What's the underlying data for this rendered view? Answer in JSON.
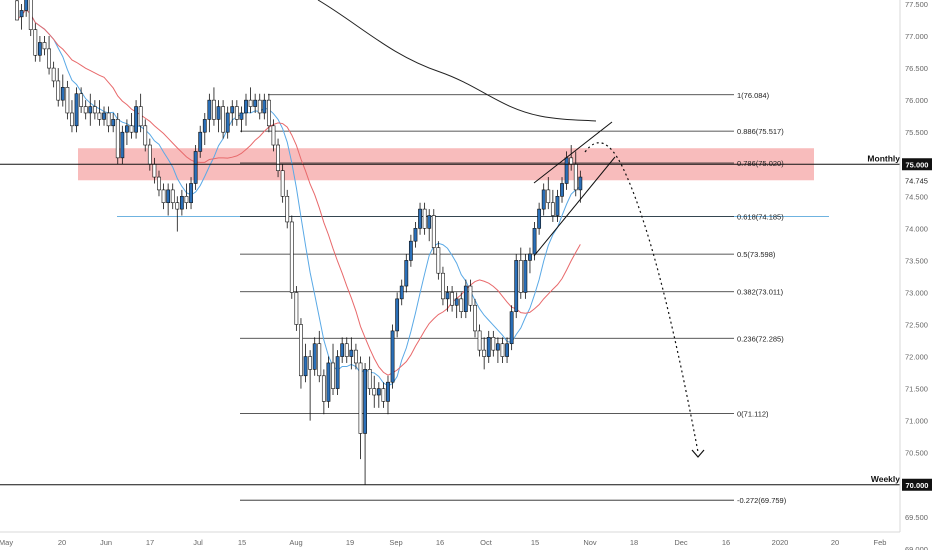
{
  "chart_data": {
    "type": "candlestick",
    "title": "",
    "xlabel": "",
    "ylabel": "",
    "ylim": [
      68.75,
      77.75
    ],
    "y_ticks": [
      "77.500",
      "77.000",
      "76.500",
      "76.000",
      "75.500",
      "75.000",
      "74.745",
      "74.500",
      "74.000",
      "73.500",
      "73.000",
      "72.500",
      "72.000",
      "71.500",
      "71.000",
      "70.500",
      "70.000",
      "69.500",
      "69.000"
    ],
    "x_ticks": [
      "May",
      "20",
      "Jun",
      "17",
      "Jul",
      "15",
      "Aug",
      "19",
      "Sep",
      "16",
      "Oct",
      "15",
      "Nov",
      "18",
      "Dec",
      "16",
      "2020",
      "20",
      "Feb"
    ],
    "current_price": "74.745",
    "candles": [
      {
        "o": 77.55,
        "h": 77.8,
        "l": 77.3,
        "c": 77.25
      },
      {
        "o": 77.3,
        "h": 77.5,
        "l": 77.1,
        "c": 77.4
      },
      {
        "o": 77.4,
        "h": 77.7,
        "l": 77.3,
        "c": 77.6
      },
      {
        "o": 77.6,
        "h": 77.7,
        "l": 77.0,
        "c": 77.1
      },
      {
        "o": 77.1,
        "h": 77.2,
        "l": 76.6,
        "c": 76.7
      },
      {
        "o": 76.7,
        "h": 77.0,
        "l": 76.6,
        "c": 76.9
      },
      {
        "o": 76.9,
        "h": 77.0,
        "l": 76.7,
        "c": 76.8
      },
      {
        "o": 76.8,
        "h": 77.0,
        "l": 76.4,
        "c": 76.5
      },
      {
        "o": 76.5,
        "h": 76.6,
        "l": 76.2,
        "c": 76.3
      },
      {
        "o": 76.3,
        "h": 76.5,
        "l": 75.9,
        "c": 76.0
      },
      {
        "o": 76.0,
        "h": 76.4,
        "l": 75.9,
        "c": 76.2
      },
      {
        "o": 76.2,
        "h": 76.3,
        "l": 75.7,
        "c": 75.8
      },
      {
        "o": 75.8,
        "h": 76.0,
        "l": 75.5,
        "c": 75.6
      },
      {
        "o": 75.6,
        "h": 76.2,
        "l": 75.5,
        "c": 76.1
      },
      {
        "o": 76.1,
        "h": 76.2,
        "l": 75.8,
        "c": 75.9
      },
      {
        "o": 75.9,
        "h": 76.0,
        "l": 75.7,
        "c": 75.8
      },
      {
        "o": 75.8,
        "h": 76.1,
        "l": 75.6,
        "c": 75.9
      },
      {
        "o": 75.9,
        "h": 76.0,
        "l": 75.7,
        "c": 75.8
      },
      {
        "o": 75.8,
        "h": 76.0,
        "l": 75.6,
        "c": 75.7
      },
      {
        "o": 75.7,
        "h": 75.9,
        "l": 75.6,
        "c": 75.8
      },
      {
        "o": 75.8,
        "h": 75.9,
        "l": 75.5,
        "c": 75.6
      },
      {
        "o": 75.6,
        "h": 75.8,
        "l": 75.5,
        "c": 75.7
      },
      {
        "o": 75.7,
        "h": 75.8,
        "l": 75.0,
        "c": 75.1
      },
      {
        "o": 75.1,
        "h": 75.6,
        "l": 75.0,
        "c": 75.5
      },
      {
        "o": 75.5,
        "h": 75.7,
        "l": 75.3,
        "c": 75.6
      },
      {
        "o": 75.6,
        "h": 75.8,
        "l": 75.4,
        "c": 75.5
      },
      {
        "o": 75.5,
        "h": 76.0,
        "l": 75.4,
        "c": 75.9
      },
      {
        "o": 75.9,
        "h": 76.1,
        "l": 75.5,
        "c": 75.6
      },
      {
        "o": 75.6,
        "h": 75.7,
        "l": 75.2,
        "c": 75.3
      },
      {
        "o": 75.3,
        "h": 75.4,
        "l": 74.9,
        "c": 75.0
      },
      {
        "o": 75.0,
        "h": 75.1,
        "l": 74.7,
        "c": 74.8
      },
      {
        "o": 74.8,
        "h": 74.9,
        "l": 74.5,
        "c": 74.6
      },
      {
        "o": 74.6,
        "h": 74.7,
        "l": 74.3,
        "c": 74.4
      },
      {
        "o": 74.4,
        "h": 74.7,
        "l": 74.2,
        "c": 74.6
      },
      {
        "o": 74.6,
        "h": 74.7,
        "l": 74.3,
        "c": 74.4
      },
      {
        "o": 74.4,
        "h": 74.5,
        "l": 73.95,
        "c": 74.3
      },
      {
        "o": 74.3,
        "h": 74.6,
        "l": 74.2,
        "c": 74.5
      },
      {
        "o": 74.5,
        "h": 74.7,
        "l": 74.3,
        "c": 74.4
      },
      {
        "o": 74.4,
        "h": 74.8,
        "l": 74.3,
        "c": 74.7
      },
      {
        "o": 74.7,
        "h": 75.3,
        "l": 74.6,
        "c": 75.2
      },
      {
        "o": 75.2,
        "h": 75.6,
        "l": 75.1,
        "c": 75.5
      },
      {
        "o": 75.5,
        "h": 75.8,
        "l": 75.3,
        "c": 75.7
      },
      {
        "o": 75.7,
        "h": 76.1,
        "l": 75.5,
        "c": 76.0
      },
      {
        "o": 76.0,
        "h": 76.2,
        "l": 75.6,
        "c": 75.7
      },
      {
        "o": 75.7,
        "h": 76.0,
        "l": 75.5,
        "c": 75.9
      },
      {
        "o": 75.9,
        "h": 76.0,
        "l": 75.4,
        "c": 75.5
      },
      {
        "o": 75.5,
        "h": 75.9,
        "l": 75.4,
        "c": 75.8
      },
      {
        "o": 75.8,
        "h": 76.0,
        "l": 75.6,
        "c": 75.9
      },
      {
        "o": 75.9,
        "h": 76.0,
        "l": 75.6,
        "c": 75.7
      },
      {
        "o": 75.7,
        "h": 75.9,
        "l": 75.5,
        "c": 75.8
      },
      {
        "o": 75.8,
        "h": 76.1,
        "l": 75.6,
        "c": 76.0
      },
      {
        "o": 76.0,
        "h": 76.2,
        "l": 75.8,
        "c": 75.9
      },
      {
        "o": 75.9,
        "h": 76.1,
        "l": 75.8,
        "c": 76.0
      },
      {
        "o": 76.0,
        "h": 76.1,
        "l": 75.7,
        "c": 75.8
      },
      {
        "o": 75.8,
        "h": 76.1,
        "l": 75.7,
        "c": 76.0
      },
      {
        "o": 76.0,
        "h": 76.1,
        "l": 75.5,
        "c": 75.6
      },
      {
        "o": 75.6,
        "h": 75.7,
        "l": 75.2,
        "c": 75.3
      },
      {
        "o": 75.3,
        "h": 75.4,
        "l": 74.8,
        "c": 74.9
      },
      {
        "o": 74.9,
        "h": 75.0,
        "l": 74.4,
        "c": 74.5
      },
      {
        "o": 74.5,
        "h": 74.6,
        "l": 74.0,
        "c": 74.1
      },
      {
        "o": 74.1,
        "h": 74.2,
        "l": 72.9,
        "c": 73.0
      },
      {
        "o": 73.0,
        "h": 73.1,
        "l": 72.4,
        "c": 72.5
      },
      {
        "o": 72.5,
        "h": 72.6,
        "l": 71.5,
        "c": 71.7
      },
      {
        "o": 71.7,
        "h": 72.2,
        "l": 71.6,
        "c": 72.0
      },
      {
        "o": 72.0,
        "h": 72.1,
        "l": 71.0,
        "c": 71.8
      },
      {
        "o": 71.8,
        "h": 72.3,
        "l": 71.7,
        "c": 72.2
      },
      {
        "o": 72.2,
        "h": 72.4,
        "l": 71.6,
        "c": 71.7
      },
      {
        "o": 71.7,
        "h": 71.8,
        "l": 71.1,
        "c": 71.3
      },
      {
        "o": 71.3,
        "h": 72.0,
        "l": 71.2,
        "c": 71.9
      },
      {
        "o": 71.9,
        "h": 72.2,
        "l": 71.4,
        "c": 71.5
      },
      {
        "o": 71.5,
        "h": 72.1,
        "l": 71.4,
        "c": 72.0
      },
      {
        "o": 72.0,
        "h": 72.3,
        "l": 71.9,
        "c": 72.2
      },
      {
        "o": 72.2,
        "h": 72.3,
        "l": 71.9,
        "c": 72.0
      },
      {
        "o": 72.0,
        "h": 72.3,
        "l": 71.8,
        "c": 72.1
      },
      {
        "o": 72.1,
        "h": 72.2,
        "l": 71.8,
        "c": 71.9
      },
      {
        "o": 71.9,
        "h": 72.0,
        "l": 70.4,
        "c": 70.8
      },
      {
        "o": 70.8,
        "h": 71.9,
        "l": 70.0,
        "c": 71.8
      },
      {
        "o": 71.8,
        "h": 72.0,
        "l": 71.4,
        "c": 71.5
      },
      {
        "o": 71.5,
        "h": 71.7,
        "l": 71.2,
        "c": 71.4
      },
      {
        "o": 71.4,
        "h": 71.6,
        "l": 71.2,
        "c": 71.5
      },
      {
        "o": 71.5,
        "h": 71.6,
        "l": 71.2,
        "c": 71.3
      },
      {
        "o": 71.3,
        "h": 71.7,
        "l": 71.1,
        "c": 71.6
      },
      {
        "o": 71.6,
        "h": 72.5,
        "l": 71.5,
        "c": 72.4
      },
      {
        "o": 72.4,
        "h": 73.0,
        "l": 72.3,
        "c": 72.9
      },
      {
        "o": 72.9,
        "h": 73.2,
        "l": 72.8,
        "c": 73.1
      },
      {
        "o": 73.1,
        "h": 73.6,
        "l": 73.0,
        "c": 73.5
      },
      {
        "o": 73.5,
        "h": 73.9,
        "l": 73.4,
        "c": 73.8
      },
      {
        "o": 73.8,
        "h": 74.1,
        "l": 73.7,
        "c": 74.0
      },
      {
        "o": 74.0,
        "h": 74.4,
        "l": 73.9,
        "c": 74.3
      },
      {
        "o": 74.3,
        "h": 74.4,
        "l": 73.9,
        "c": 74.0
      },
      {
        "o": 74.0,
        "h": 74.3,
        "l": 73.8,
        "c": 74.2
      },
      {
        "o": 74.2,
        "h": 74.3,
        "l": 73.6,
        "c": 73.7
      },
      {
        "o": 73.7,
        "h": 73.8,
        "l": 73.2,
        "c": 73.3
      },
      {
        "o": 73.3,
        "h": 73.4,
        "l": 72.8,
        "c": 72.9
      },
      {
        "o": 72.9,
        "h": 73.1,
        "l": 72.7,
        "c": 73.0
      },
      {
        "o": 73.0,
        "h": 73.1,
        "l": 72.7,
        "c": 72.8
      },
      {
        "o": 72.8,
        "h": 73.0,
        "l": 72.6,
        "c": 72.9
      },
      {
        "o": 72.9,
        "h": 73.0,
        "l": 72.6,
        "c": 72.7
      },
      {
        "o": 72.7,
        "h": 73.2,
        "l": 72.6,
        "c": 73.1
      },
      {
        "o": 73.1,
        "h": 73.2,
        "l": 72.7,
        "c": 72.8
      },
      {
        "o": 72.8,
        "h": 72.9,
        "l": 72.3,
        "c": 72.4
      },
      {
        "o": 72.4,
        "h": 72.5,
        "l": 72.0,
        "c": 72.1
      },
      {
        "o": 72.1,
        "h": 72.3,
        "l": 71.8,
        "c": 72.0
      },
      {
        "o": 72.0,
        "h": 72.4,
        "l": 71.9,
        "c": 72.3
      },
      {
        "o": 72.3,
        "h": 72.4,
        "l": 72.0,
        "c": 72.1
      },
      {
        "o": 72.1,
        "h": 72.3,
        "l": 71.9,
        "c": 72.2
      },
      {
        "o": 72.2,
        "h": 72.3,
        "l": 71.9,
        "c": 72.0
      },
      {
        "o": 72.0,
        "h": 72.3,
        "l": 71.9,
        "c": 72.2
      },
      {
        "o": 72.2,
        "h": 72.8,
        "l": 72.1,
        "c": 72.7
      },
      {
        "o": 72.7,
        "h": 73.6,
        "l": 72.6,
        "c": 73.5
      },
      {
        "o": 73.5,
        "h": 73.7,
        "l": 72.9,
        "c": 73.0
      },
      {
        "o": 73.0,
        "h": 73.6,
        "l": 72.9,
        "c": 73.5
      },
      {
        "o": 73.5,
        "h": 73.7,
        "l": 73.3,
        "c": 73.6
      },
      {
        "o": 73.6,
        "h": 74.1,
        "l": 73.5,
        "c": 74.0
      },
      {
        "o": 74.0,
        "h": 74.4,
        "l": 73.9,
        "c": 74.3
      },
      {
        "o": 74.3,
        "h": 74.7,
        "l": 74.2,
        "c": 74.6
      },
      {
        "o": 74.6,
        "h": 74.8,
        "l": 74.3,
        "c": 74.4
      },
      {
        "o": 74.4,
        "h": 74.6,
        "l": 74.1,
        "c": 74.2
      },
      {
        "o": 74.2,
        "h": 74.6,
        "l": 74.1,
        "c": 74.5
      },
      {
        "o": 74.5,
        "h": 74.8,
        "l": 74.4,
        "c": 74.7
      },
      {
        "o": 74.7,
        "h": 75.2,
        "l": 74.6,
        "c": 75.1
      },
      {
        "o": 75.1,
        "h": 75.3,
        "l": 74.9,
        "c": 75.0
      },
      {
        "o": 75.0,
        "h": 75.2,
        "l": 74.5,
        "c": 74.6
      },
      {
        "o": 74.6,
        "h": 74.9,
        "l": 74.4,
        "c": 74.8
      }
    ],
    "moving_averages": [
      {
        "period": 9,
        "color": "#5aa9e6"
      },
      {
        "period": 20,
        "color": "#e8696b"
      },
      {
        "period": 200,
        "color": "#222222"
      }
    ],
    "fib_levels": [
      {
        "label": "1(76.084)",
        "value": 76.084
      },
      {
        "label": "0.886(75.517)",
        "value": 75.517
      },
      {
        "label": "0.786(75.020)",
        "value": 75.02
      },
      {
        "label": "0.618(74.185)",
        "value": 74.185
      },
      {
        "label": "0.5(73.598)",
        "value": 73.598
      },
      {
        "label": "0.382(73.011)",
        "value": 73.011
      },
      {
        "label": "0.236(72.285)",
        "value": 72.285
      },
      {
        "label": "0(71.112)",
        "value": 71.112
      },
      {
        "label": "-0.272(69.759)",
        "value": 69.759
      }
    ],
    "levels": [
      {
        "label": "Monthly",
        "value": 75.0,
        "price_label": "75.000"
      },
      {
        "label": "Weekly",
        "value": 70.0,
        "price_label": "70.000"
      }
    ],
    "support_level": 74.185,
    "resistance_zone": [
      74.75,
      75.25
    ],
    "colors": {
      "up": "#2a6fb8",
      "down": "#ffffff",
      "outline": "#111111",
      "zone": "#f6a6a6"
    }
  }
}
